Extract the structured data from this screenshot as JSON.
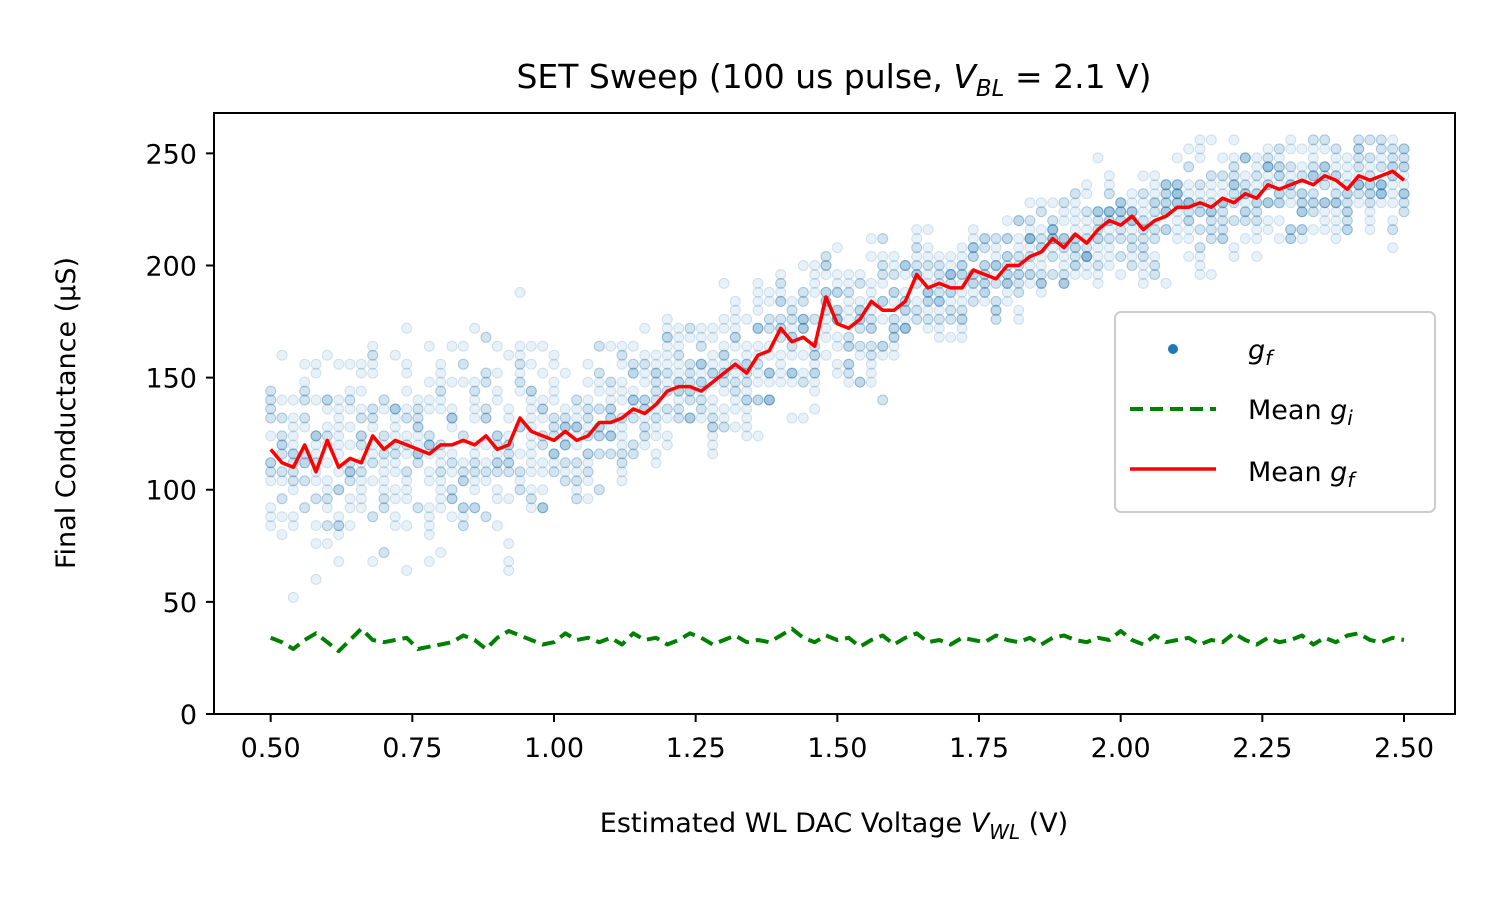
{
  "chart_data": {
    "type": "scatter",
    "title": {
      "prefix": "SET Sweep (100 us pulse, ",
      "var": "V",
      "sub": "BL",
      "suffix": " = 2.1 V)"
    },
    "xlabel": {
      "prefix": "Estimated WL DAC Voltage ",
      "var": "V",
      "sub": "WL",
      "suffix": " (V)"
    },
    "ylabel": "Final Conductance (µS)",
    "xlim": [
      0.4,
      2.59
    ],
    "ylim": [
      0,
      268
    ],
    "xticks": [
      "0.50",
      "0.75",
      "1.00",
      "1.25",
      "1.50",
      "1.75",
      "2.00",
      "2.25",
      "2.50"
    ],
    "yticks": [
      "0",
      "50",
      "100",
      "150",
      "200",
      "250"
    ],
    "grid": false,
    "legend_position": "center-right",
    "legend": [
      {
        "base": "g",
        "sub": "f",
        "prefix": "",
        "kind": "marker",
        "color": "#1f77b4"
      },
      {
        "base": "g",
        "sub": "i",
        "prefix": "Mean ",
        "kind": "dashed",
        "color": "#008000"
      },
      {
        "base": "g",
        "sub": "f",
        "prefix": "Mean ",
        "kind": "solid",
        "color": "#ff0000"
      }
    ],
    "series": [
      {
        "name": "Mean g_f",
        "color": "#ff0000",
        "style": "solid",
        "x": [
          0.5,
          0.52,
          0.54,
          0.56,
          0.58,
          0.6,
          0.62,
          0.64,
          0.66,
          0.68,
          0.7,
          0.72,
          0.74,
          0.76,
          0.78,
          0.8,
          0.82,
          0.84,
          0.86,
          0.88,
          0.9,
          0.92,
          0.94,
          0.96,
          0.98,
          1.0,
          1.02,
          1.04,
          1.06,
          1.08,
          1.1,
          1.12,
          1.14,
          1.16,
          1.18,
          1.2,
          1.22,
          1.24,
          1.26,
          1.28,
          1.3,
          1.32,
          1.34,
          1.36,
          1.38,
          1.4,
          1.42,
          1.44,
          1.46,
          1.48,
          1.5,
          1.52,
          1.54,
          1.56,
          1.58,
          1.6,
          1.62,
          1.64,
          1.66,
          1.68,
          1.7,
          1.72,
          1.74,
          1.76,
          1.78,
          1.8,
          1.82,
          1.84,
          1.86,
          1.88,
          1.9,
          1.92,
          1.94,
          1.96,
          1.98,
          2.0,
          2.02,
          2.04,
          2.06,
          2.08,
          2.1,
          2.12,
          2.14,
          2.16,
          2.18,
          2.2,
          2.22,
          2.24,
          2.26,
          2.28,
          2.3,
          2.32,
          2.34,
          2.36,
          2.38,
          2.4,
          2.42,
          2.44,
          2.46,
          2.48,
          2.5
        ],
        "y": [
          118,
          112,
          110,
          120,
          108,
          122,
          110,
          114,
          112,
          124,
          118,
          122,
          120,
          118,
          116,
          120,
          120,
          122,
          120,
          124,
          118,
          120,
          132,
          126,
          124,
          122,
          126,
          122,
          124,
          130,
          130,
          132,
          136,
          134,
          138,
          144,
          146,
          146,
          144,
          148,
          152,
          156,
          152,
          160,
          162,
          172,
          166,
          168,
          164,
          186,
          174,
          172,
          176,
          184,
          180,
          180,
          184,
          196,
          190,
          192,
          190,
          190,
          198,
          196,
          194,
          200,
          200,
          204,
          206,
          212,
          208,
          214,
          210,
          216,
          220,
          218,
          222,
          216,
          220,
          222,
          226,
          226,
          228,
          226,
          230,
          228,
          232,
          230,
          236,
          234,
          236,
          238,
          236,
          240,
          238,
          234,
          240,
          238,
          240,
          242,
          238
        ]
      },
      {
        "name": "Mean g_i",
        "color": "#008000",
        "style": "dashed",
        "x": [
          0.5,
          0.52,
          0.54,
          0.56,
          0.58,
          0.6,
          0.62,
          0.64,
          0.66,
          0.68,
          0.7,
          0.72,
          0.74,
          0.76,
          0.78,
          0.8,
          0.82,
          0.84,
          0.86,
          0.88,
          0.9,
          0.92,
          0.94,
          0.96,
          0.98,
          1.0,
          1.02,
          1.04,
          1.06,
          1.08,
          1.1,
          1.12,
          1.14,
          1.16,
          1.18,
          1.2,
          1.22,
          1.24,
          1.26,
          1.28,
          1.3,
          1.32,
          1.34,
          1.36,
          1.38,
          1.4,
          1.42,
          1.44,
          1.46,
          1.48,
          1.5,
          1.52,
          1.54,
          1.56,
          1.58,
          1.6,
          1.62,
          1.64,
          1.66,
          1.68,
          1.7,
          1.72,
          1.74,
          1.76,
          1.78,
          1.8,
          1.82,
          1.84,
          1.86,
          1.88,
          1.9,
          1.92,
          1.94,
          1.96,
          1.98,
          2.0,
          2.02,
          2.04,
          2.06,
          2.08,
          2.1,
          2.12,
          2.14,
          2.16,
          2.18,
          2.2,
          2.22,
          2.24,
          2.26,
          2.28,
          2.3,
          2.32,
          2.34,
          2.36,
          2.38,
          2.4,
          2.42,
          2.44,
          2.46,
          2.48,
          2.5
        ],
        "y": [
          34,
          32,
          29,
          33,
          36,
          32,
          28,
          33,
          38,
          33,
          32,
          33,
          34,
          29,
          30,
          31,
          32,
          35,
          33,
          29,
          34,
          37,
          35,
          33,
          31,
          32,
          36,
          33,
          34,
          32,
          34,
          31,
          36,
          33,
          34,
          31,
          33,
          36,
          34,
          31,
          33,
          35,
          32,
          33,
          32,
          35,
          38,
          34,
          32,
          35,
          33,
          34,
          30,
          33,
          35,
          31,
          34,
          36,
          32,
          33,
          31,
          34,
          33,
          32,
          35,
          33,
          32,
          34,
          31,
          34,
          35,
          33,
          32,
          34,
          33,
          37,
          33,
          31,
          35,
          32,
          33,
          34,
          31,
          33,
          32,
          36,
          33,
          31,
          34,
          32,
          33,
          35,
          31,
          34,
          32,
          35,
          36,
          33,
          32,
          34,
          33
        ]
      },
      {
        "name": "g_f",
        "color": "#1f77b4",
        "style": "markers",
        "x": [],
        "y": []
      }
    ]
  }
}
